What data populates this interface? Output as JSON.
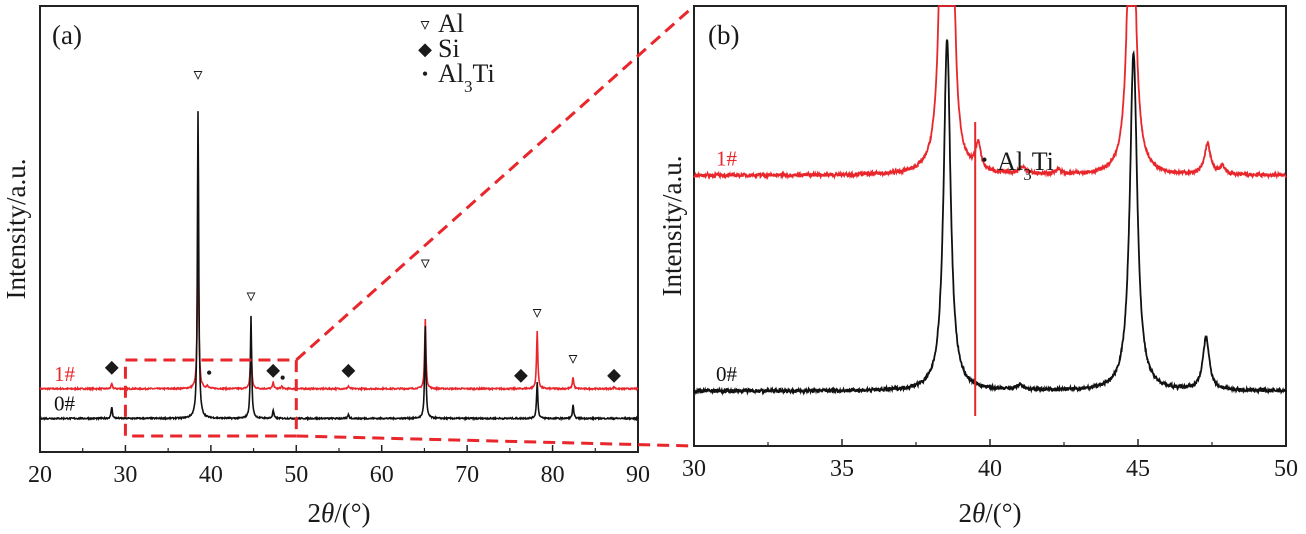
{
  "chart_data": [
    {
      "panel": "(a)",
      "type": "line",
      "xlabel_prefix": "2",
      "xlabel_theta": "θ",
      "xlabel_suffix": "/(°)",
      "ylabel": "Intensity/a.u.",
      "xlim": [
        20,
        90
      ],
      "xticks": [
        20,
        30,
        40,
        50,
        60,
        70,
        80,
        90
      ],
      "yticks_shown": false,
      "legend": {
        "placement": "top-center",
        "entries": [
          {
            "symbol": "▿",
            "phase": "Al"
          },
          {
            "symbol": "◆",
            "phase": "Si"
          },
          {
            "symbol": "•",
            "phase": "Al",
            "sub": "3",
            "tail": "Ti"
          }
        ]
      },
      "series": [
        {
          "name": "1#",
          "color": "#e8262b",
          "baseline": 0.125,
          "peaks": [
            {
              "x": 28.4,
              "h": 0.015
            },
            {
              "x": 38.5,
              "h": 0.52
            },
            {
              "x": 39.6,
              "h": 0.01
            },
            {
              "x": 44.7,
              "h": 0.145
            },
            {
              "x": 47.3,
              "h": 0.02
            },
            {
              "x": 48.3,
              "h": 0.008
            },
            {
              "x": 56.1,
              "h": 0.008
            },
            {
              "x": 65.1,
              "h": 0.21
            },
            {
              "x": 78.2,
              "h": 0.175
            },
            {
              "x": 82.4,
              "h": 0.035
            },
            {
              "x": 87.2,
              "h": 0.006
            }
          ]
        },
        {
          "name": "0#",
          "color": "#111111",
          "baseline": 0.035,
          "peaks": [
            {
              "x": 28.4,
              "h": 0.035
            },
            {
              "x": 38.5,
              "h": 0.93
            },
            {
              "x": 44.7,
              "h": 0.31
            },
            {
              "x": 47.3,
              "h": 0.025
            },
            {
              "x": 56.1,
              "h": 0.012
            },
            {
              "x": 65.1,
              "h": 0.28
            },
            {
              "x": 78.2,
              "h": 0.11
            },
            {
              "x": 82.4,
              "h": 0.04
            }
          ]
        }
      ],
      "annotations": [
        {
          "x": 38.5,
          "y": 1.06,
          "symbol": "▿"
        },
        {
          "x": 44.7,
          "y": 0.39,
          "symbol": "▿"
        },
        {
          "x": 65.1,
          "y": 0.49,
          "symbol": "▿"
        },
        {
          "x": 78.2,
          "y": 0.34,
          "symbol": "▿"
        },
        {
          "x": 82.4,
          "y": 0.2,
          "symbol": "▿"
        },
        {
          "x": 28.4,
          "y": 0.175,
          "symbol": "◆"
        },
        {
          "x": 47.3,
          "y": 0.165,
          "symbol": "◆"
        },
        {
          "x": 56.1,
          "y": 0.165,
          "symbol": "◆"
        },
        {
          "x": 76.3,
          "y": 0.15,
          "symbol": "◆"
        },
        {
          "x": 87.2,
          "y": 0.15,
          "symbol": "◆"
        },
        {
          "x": 39.8,
          "y": 0.155,
          "symbol": "•"
        },
        {
          "x": 48.4,
          "y": 0.14,
          "symbol": "•"
        }
      ],
      "zoom_box": {
        "x_range": [
          30,
          50
        ],
        "color": "#e8262b"
      }
    },
    {
      "panel": "(b)",
      "type": "line",
      "xlabel_prefix": "2",
      "xlabel_theta": "θ",
      "xlabel_suffix": "/(°)",
      "ylabel": "Intensity/a.u.",
      "xlim": [
        30,
        50
      ],
      "xticks": [
        30,
        35,
        40,
        45,
        50
      ],
      "yticks_shown": false,
      "series": [
        {
          "name": "1#",
          "color": "#e8262b",
          "baseline": 0.615,
          "peaks": [
            {
              "x": 38.42,
              "h": 0.9,
              "w": 0.12
            },
            {
              "x": 38.68,
              "h": 0.9,
              "w": 0.1
            },
            {
              "x": 39.6,
              "h": 0.06,
              "w": 0.1
            },
            {
              "x": 41.1,
              "h": 0.015,
              "w": 0.15
            },
            {
              "x": 42.3,
              "h": 0.012,
              "w": 0.1
            },
            {
              "x": 44.78,
              "h": 0.9,
              "w": 0.13
            },
            {
              "x": 47.35,
              "h": 0.07,
              "w": 0.12
            },
            {
              "x": 47.85,
              "h": 0.018,
              "w": 0.1
            }
          ]
        },
        {
          "name": "0#",
          "color": "#111111",
          "baseline": 0.125,
          "peaks": [
            {
              "x": 38.55,
              "h": 0.8,
              "w": 0.14
            },
            {
              "x": 44.85,
              "h": 0.77,
              "w": 0.15
            },
            {
              "x": 47.3,
              "h": 0.12,
              "w": 0.13
            },
            {
              "x": 41.0,
              "h": 0.01,
              "w": 0.15
            }
          ]
        }
      ],
      "marker_line": {
        "x": 39.5,
        "color": "#e8262b"
      },
      "annotation": {
        "symbol": "•",
        "phase": "Al",
        "sub": "3",
        "tail": "Ti"
      }
    }
  ]
}
